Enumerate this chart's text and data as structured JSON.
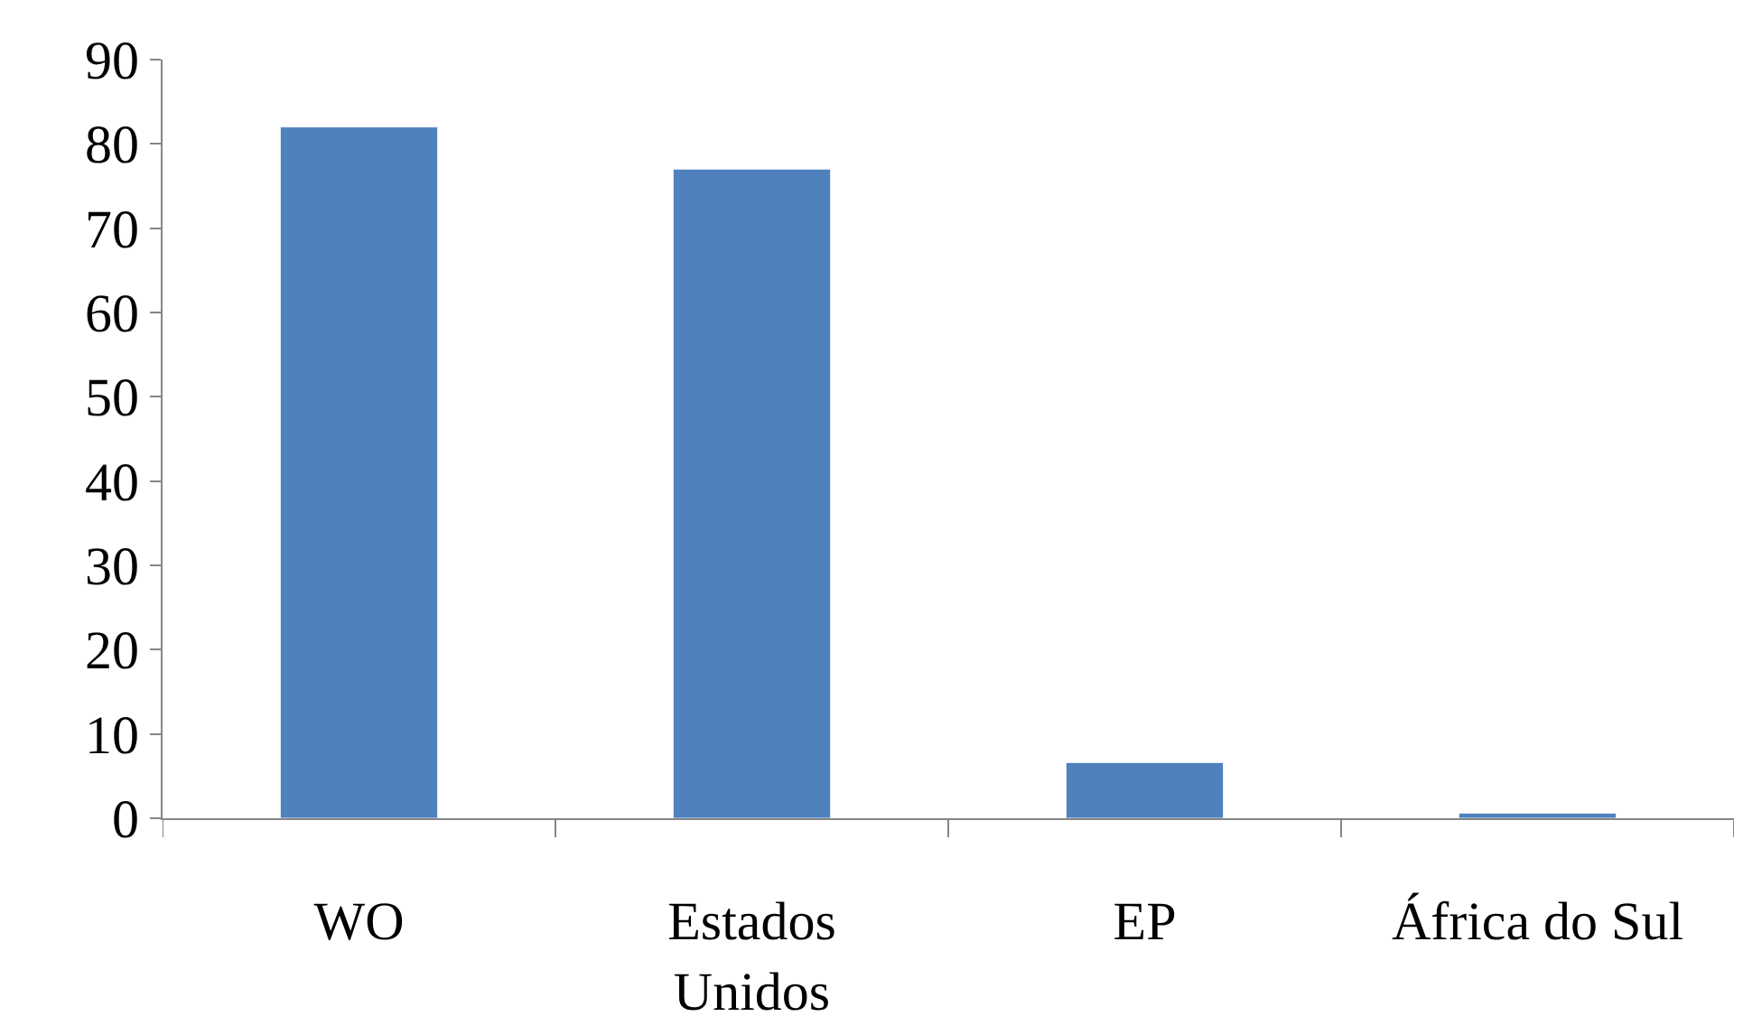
{
  "chart_data": {
    "type": "bar",
    "categories": [
      "WO",
      "Estados\nUnidos",
      "EP",
      "África do Sul"
    ],
    "values": [
      82,
      77,
      6.6,
      0.6
    ],
    "color": "#4f81bd",
    "ylim": [
      0,
      90
    ],
    "yticks": [
      0,
      10,
      20,
      30,
      40,
      50,
      60,
      70,
      80,
      90
    ]
  }
}
